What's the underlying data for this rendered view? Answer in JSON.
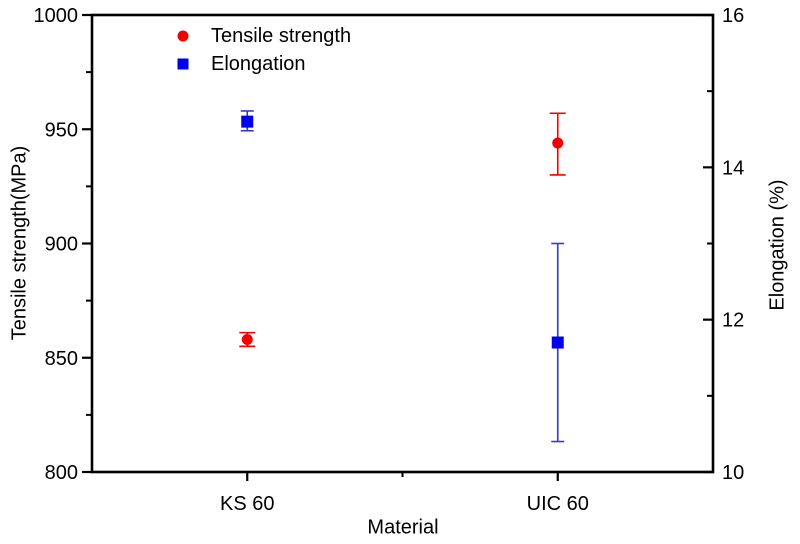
{
  "figure": {
    "background": "#ffffff",
    "frame_color": "#000000"
  },
  "chart_data": {
    "type": "scatter",
    "title": "",
    "xlabel": "Material",
    "categories": [
      "KS 60",
      "UIC 60"
    ],
    "grid": false,
    "legend_position": "top-left-inside",
    "axes": {
      "left": {
        "label": "Tensile strength(MPa)",
        "min": 800,
        "max": 1000,
        "major_ticks": [
          1000,
          950,
          900,
          850,
          800
        ],
        "minor_ticks": [
          975,
          925,
          875,
          825
        ]
      },
      "right": {
        "label": "Elongation (%)",
        "min": 10,
        "max": 16,
        "major_ticks": [
          16,
          14,
          12,
          10
        ],
        "minor_ticks": [
          15,
          13,
          11
        ]
      }
    },
    "series": [
      {
        "name": "Tensile strength",
        "axis": "left",
        "marker": "circle",
        "color": "#f40000",
        "error_color": "#f40000",
        "points": [
          {
            "category": "KS 60",
            "value": 858,
            "err_plus": 3,
            "err_minus": 3
          },
          {
            "category": "UIC 60",
            "value": 944,
            "err_plus": 13,
            "err_minus": 14
          }
        ]
      },
      {
        "name": "Elongation",
        "axis": "right",
        "marker": "square",
        "color": "#0000ee",
        "error_color": "#3939cf",
        "points": [
          {
            "category": "KS 60",
            "value": 14.6,
            "err_plus": 0.14,
            "err_minus": 0.12
          },
          {
            "category": "UIC 60",
            "value": 11.7,
            "err_plus": 1.3,
            "err_minus": 1.3
          }
        ]
      }
    ]
  }
}
